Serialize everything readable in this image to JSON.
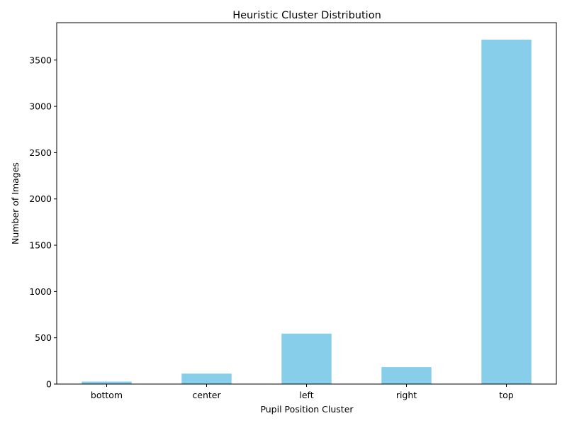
{
  "chart_data": {
    "type": "bar",
    "title": "Heuristic Cluster Distribution",
    "xlabel": "Pupil Position Cluster",
    "ylabel": "Number of Images",
    "categories": [
      "bottom",
      "center",
      "left",
      "right",
      "top"
    ],
    "values": [
      27,
      113,
      545,
      183,
      3721
    ],
    "ylim": [
      0,
      3904
    ],
    "yticks": [
      0,
      500,
      1000,
      1500,
      2000,
      2500,
      3000,
      3500
    ],
    "grid": false,
    "legend": "none",
    "bar_color": "#87ceeb"
  }
}
